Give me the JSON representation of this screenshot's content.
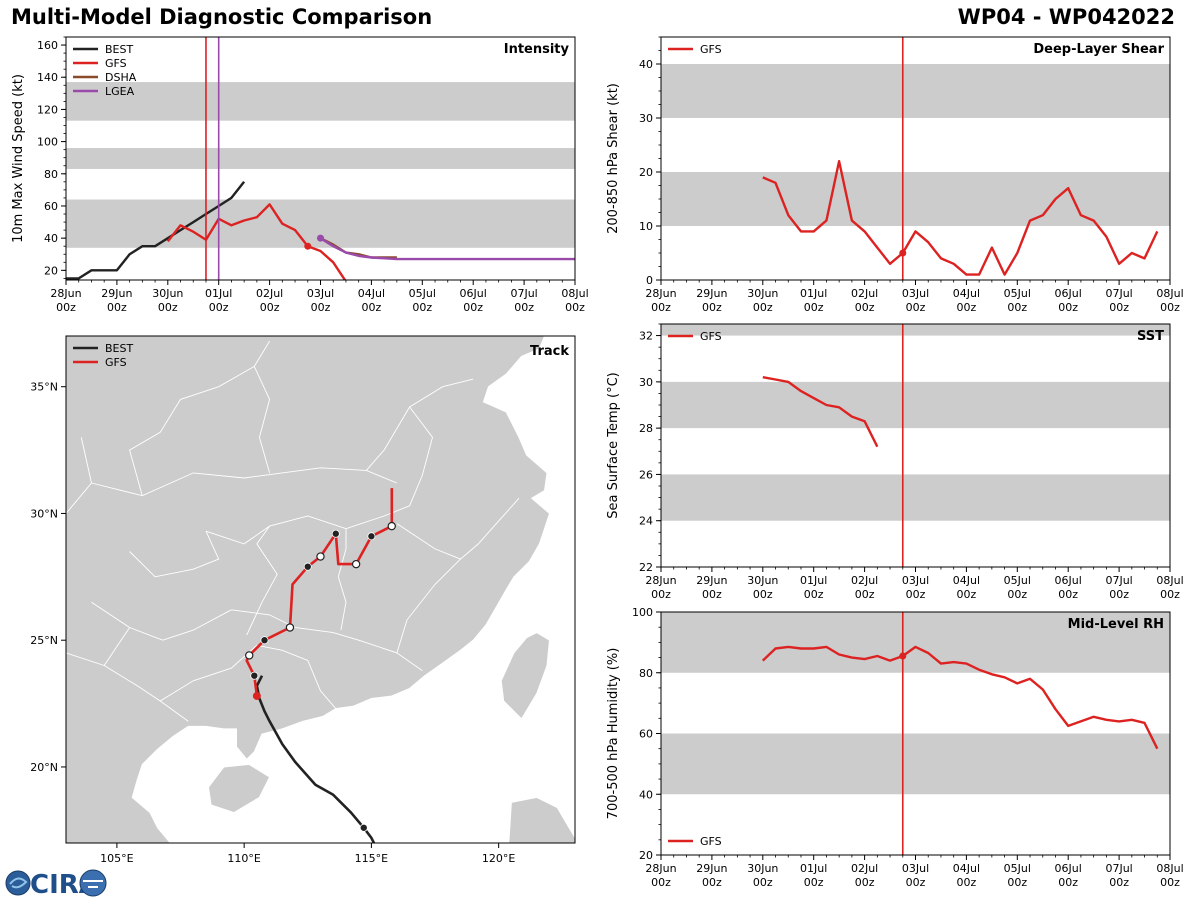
{
  "header": {
    "title": "Multi-Model Diagnostic Comparison",
    "storm_id": "WP04 - WP042022"
  },
  "logo": {
    "text": "CIRA"
  },
  "colors": {
    "best": "#222222",
    "gfs": "#dd2222",
    "dsha": "#8b4a2a",
    "lgea": "#9a4aab",
    "band": "#cccccc",
    "coast": "#ffffff",
    "land": "#cccccc"
  },
  "time_axis": {
    "tick_days": [
      "28Jun",
      "29Jun",
      "30Jun",
      "01Jul",
      "02Jul",
      "03Jul",
      "04Jul",
      "05Jul",
      "06Jul",
      "07Jul",
      "08Jul"
    ],
    "tick_hour": "00z",
    "start": "28Jun 00z",
    "end": "08Jul 00z",
    "units": "days since 28Jun 00z"
  },
  "chart_data": [
    {
      "id": "intensity",
      "type": "line",
      "title": "Intensity",
      "ylabel": "10m Max Wind Speed (kt)",
      "xlim": [
        0,
        10
      ],
      "ylim": [
        14,
        165
      ],
      "yticks": [
        20,
        40,
        60,
        80,
        100,
        120,
        140,
        160
      ],
      "bands": [
        [
          34,
          64
        ],
        [
          83,
          96
        ],
        [
          113,
          137
        ]
      ],
      "vlines": [
        {
          "x": 2.75,
          "color": "gfs"
        },
        {
          "x": 3.0,
          "color": "lgea"
        }
      ],
      "legend": [
        "BEST",
        "GFS",
        "DSHA",
        "LGEA"
      ],
      "legend_position": "top-left",
      "series": [
        {
          "name": "BEST",
          "color": "best",
          "x": [
            0,
            0.25,
            0.5,
            0.75,
            1.0,
            1.25,
            1.5,
            1.75,
            2.0,
            2.25,
            2.5,
            2.75,
            3.0,
            3.25,
            3.5
          ],
          "y": [
            15,
            15,
            20,
            20,
            20,
            30,
            35,
            35,
            40,
            45,
            50,
            55,
            60,
            65,
            75
          ]
        },
        {
          "name": "GFS",
          "color": "gfs",
          "x": [
            2.0,
            2.25,
            2.5,
            2.75,
            3.0,
            3.25,
            3.5,
            3.75,
            4.0,
            4.25,
            4.5,
            4.75,
            5.0,
            5.25,
            5.5
          ],
          "y": [
            38,
            48,
            44,
            39,
            52,
            48,
            51,
            53,
            61,
            49,
            45,
            35,
            32,
            25,
            13
          ]
        },
        {
          "name": "DSHA",
          "color": "dsha",
          "x": [
            5.0,
            5.25,
            5.5,
            5.75,
            6.0,
            6.25,
            6.5
          ],
          "y": [
            40,
            36,
            31,
            30,
            28,
            28,
            28
          ]
        },
        {
          "name": "LGEA",
          "color": "lgea",
          "x": [
            5.0,
            5.25,
            5.5,
            5.75,
            6.0,
            6.5,
            7.0,
            7.5,
            8.0,
            8.5,
            9.0,
            9.5,
            10.0
          ],
          "y": [
            40,
            35,
            31,
            29,
            28,
            27,
            27,
            27,
            27,
            27,
            27,
            27,
            27
          ]
        }
      ]
    },
    {
      "id": "track",
      "type": "scatter",
      "title": "Track",
      "xlim": [
        103.0,
        123.0
      ],
      "ylim": [
        17.0,
        37.0
      ],
      "xticks": [
        105,
        110,
        115,
        120
      ],
      "xtick_labels": [
        "105°E",
        "110°E",
        "115°E",
        "120°E"
      ],
      "yticks": [
        20,
        25,
        30,
        35
      ],
      "ytick_labels": [
        "20°N",
        "25°N",
        "30°N",
        "35°N"
      ],
      "legend": [
        "BEST",
        "GFS"
      ],
      "legend_position": "top-left",
      "series": [
        {
          "name": "BEST",
          "color": "best",
          "lon": [
            115.2,
            115.0,
            114.7,
            114.2,
            113.5,
            112.8,
            112.0,
            111.5,
            111.0,
            110.8,
            110.6,
            110.5,
            110.6,
            110.7
          ],
          "lat": [
            16.8,
            17.2,
            17.6,
            18.2,
            18.9,
            19.3,
            20.2,
            20.9,
            21.8,
            22.2,
            22.7,
            23.2,
            23.4,
            23.6
          ]
        },
        {
          "name": "GFS",
          "color": "gfs",
          "lon": [
            110.5,
            110.4,
            110.1,
            110.2,
            110.8,
            111.8,
            111.9,
            112.5,
            113.0,
            113.6,
            113.7,
            114.4,
            115.0,
            115.8,
            115.8,
            115.8
          ],
          "lat": [
            22.8,
            23.6,
            24.2,
            24.4,
            25.0,
            25.5,
            27.2,
            27.9,
            28.3,
            29.2,
            28.0,
            28.0,
            29.1,
            29.5,
            30.2,
            31.0
          ]
        }
      ],
      "markers": [
        {
          "lon": 110.5,
          "lat": 22.8,
          "kind": "red"
        },
        {
          "lon": 110.4,
          "lat": 23.6,
          "kind": "filled"
        },
        {
          "lon": 110.2,
          "lat": 24.4,
          "kind": "open"
        },
        {
          "lon": 110.8,
          "lat": 25.0,
          "kind": "filled"
        },
        {
          "lon": 111.8,
          "lat": 25.5,
          "kind": "open"
        },
        {
          "lon": 112.5,
          "lat": 27.9,
          "kind": "filled"
        },
        {
          "lon": 113.0,
          "lat": 28.3,
          "kind": "open"
        },
        {
          "lon": 113.6,
          "lat": 29.2,
          "kind": "filled"
        },
        {
          "lon": 114.4,
          "lat": 28.0,
          "kind": "open"
        },
        {
          "lon": 115.0,
          "lat": 29.1,
          "kind": "filled"
        },
        {
          "lon": 115.8,
          "lat": 29.5,
          "kind": "open"
        },
        {
          "lon": 114.7,
          "lat": 17.6,
          "kind": "filled"
        }
      ]
    },
    {
      "id": "shear",
      "type": "line",
      "title": "Deep-Layer Shear",
      "ylabel": "200-850 hPa Shear (kt)",
      "xlim": [
        0,
        10
      ],
      "ylim": [
        0,
        45
      ],
      "yticks": [
        0,
        10,
        20,
        30,
        40
      ],
      "bands": [
        [
          10,
          20
        ],
        [
          30,
          40
        ]
      ],
      "vlines": [
        {
          "x": 4.75,
          "color": "gfs"
        }
      ],
      "legend": [
        "GFS"
      ],
      "legend_position": "top-left",
      "series": [
        {
          "name": "GFS",
          "color": "gfs",
          "x": [
            2.0,
            2.25,
            2.5,
            2.75,
            3.0,
            3.25,
            3.5,
            3.75,
            4.0,
            4.25,
            4.5,
            4.75,
            5.0,
            5.25,
            5.5,
            5.75,
            6.0,
            6.25,
            6.5,
            6.75,
            7.0,
            7.25,
            7.5,
            7.75,
            8.0,
            8.25,
            8.5,
            8.75,
            9.0,
            9.25,
            9.5,
            9.75
          ],
          "y": [
            19,
            18,
            12,
            9,
            9,
            11,
            22,
            11,
            9,
            6,
            3,
            5,
            9,
            7,
            4,
            3,
            1,
            1,
            6,
            1,
            5,
            11,
            12,
            15,
            17,
            12,
            11,
            8,
            3,
            5,
            4,
            9
          ]
        }
      ]
    },
    {
      "id": "sst",
      "type": "line",
      "title": "SST",
      "ylabel": "Sea Surface Temp (°C)",
      "xlim": [
        0,
        10
      ],
      "ylim": [
        22,
        32.5
      ],
      "yticks": [
        22,
        24,
        26,
        28,
        30,
        32
      ],
      "bands": [
        [
          24,
          26
        ],
        [
          28,
          30
        ],
        [
          32,
          32.5
        ]
      ],
      "vlines": [
        {
          "x": 4.75,
          "color": "gfs"
        }
      ],
      "legend": [
        "GFS"
      ],
      "legend_position": "top-left",
      "series": [
        {
          "name": "GFS",
          "color": "gfs",
          "x": [
            2.0,
            2.25,
            2.5,
            2.75,
            3.0,
            3.25,
            3.5,
            3.75,
            4.0,
            4.25
          ],
          "y": [
            30.2,
            30.1,
            30.0,
            29.6,
            29.3,
            29.0,
            28.9,
            28.5,
            28.3,
            27.2
          ]
        }
      ]
    },
    {
      "id": "rh",
      "type": "line",
      "title": "Mid-Level RH",
      "ylabel": "700-500 hPa Humidity (%)",
      "xlim": [
        0,
        10
      ],
      "ylim": [
        20,
        100
      ],
      "yticks": [
        20,
        40,
        60,
        80,
        100
      ],
      "bands": [
        [
          40,
          60
        ],
        [
          80,
          100
        ]
      ],
      "vlines": [
        {
          "x": 4.75,
          "color": "gfs"
        }
      ],
      "legend": [
        "GFS"
      ],
      "legend_position": "bottom-left",
      "series": [
        {
          "name": "GFS",
          "color": "gfs",
          "x": [
            2.0,
            2.25,
            2.5,
            2.75,
            3.0,
            3.25,
            3.5,
            3.75,
            4.0,
            4.25,
            4.5,
            4.75,
            5.0,
            5.25,
            5.5,
            5.75,
            6.0,
            6.25,
            6.5,
            6.75,
            7.0,
            7.25,
            7.5,
            7.75,
            8.0,
            8.5,
            8.75,
            9.0,
            9.25,
            9.5,
            9.75
          ],
          "y": [
            84,
            88,
            88.5,
            88,
            88,
            88.5,
            86,
            85,
            84.5,
            85.5,
            84,
            85.5,
            88.5,
            86.5,
            83,
            83.5,
            83,
            81,
            79.5,
            78.5,
            76.5,
            78,
            74.5,
            68,
            62.5,
            65.5,
            64.5,
            64,
            64.5,
            63.5,
            55
          ]
        }
      ]
    }
  ]
}
